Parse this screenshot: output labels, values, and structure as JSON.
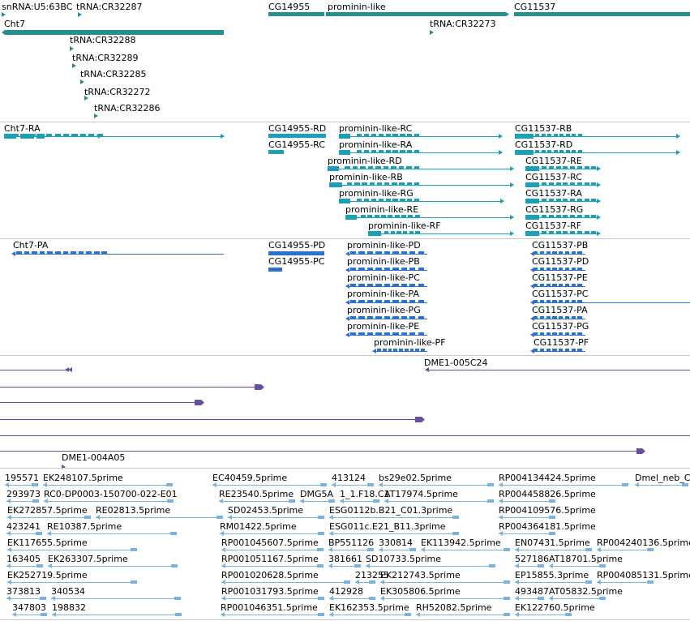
{
  "colors": {
    "gene": "#21908e",
    "transcript": "#1aa0b8",
    "protein": "#2f6fce",
    "clone": "#6a4fa0",
    "est": "#7ab4dc",
    "separator": "#c8c8c8"
  },
  "tracks": {
    "genes": {
      "labels": [
        "snRNA:U5:63BC",
        "tRNA:CR32287",
        "CG14955",
        "prominin-like",
        "CG11537",
        "Cht7",
        "tRNA:CR32273",
        "tRNA:CR32288",
        "tRNA:CR32289",
        "tRNA:CR32285",
        "tRNA:CR32272",
        "tRNA:CR32286"
      ]
    },
    "transcripts": {
      "labels": [
        "Cht7-RA",
        "CG14955-RD",
        "prominin-like-RC",
        "CG11537-RB",
        "CG14955-RC",
        "prominin-like-RA",
        "CG11537-RD",
        "prominin-like-RD",
        "CG11537-RE",
        "prominin-like-RB",
        "CG11537-RC",
        "prominin-like-RG",
        "CG11537-RA",
        "prominin-like-RE",
        "CG11537-RG",
        "prominin-like-RF",
        "CG11537-RF"
      ]
    },
    "proteins": {
      "labels": [
        "Cht7-PA",
        "CG14955-PD",
        "prominin-like-PD",
        "CG11537-PB",
        "CG14955-PC",
        "prominin-like-PB",
        "CG11537-PD",
        "prominin-like-PC",
        "CG11537-PE",
        "prominin-like-PA",
        "CG11537-PC",
        "prominin-like-PG",
        "CG11537-PA",
        "prominin-like-PE",
        "CG11537-PG",
        "prominin-like-PF",
        "CG11537-PF"
      ]
    },
    "clones": {
      "labels": [
        "DME1-005C24",
        "DME1-004A05"
      ]
    },
    "ests": {
      "labels": [
        "195571",
        "EK248107.5prime",
        "EC40459.5prime",
        "413124",
        "bs29e02.5prime",
        "RP004134424.5prime",
        "Dmel_neb_C",
        "293973",
        "RC0-DP0003-150700-022-E01",
        "RE23540.5prime",
        "DMG5A",
        "1_1.F18.C1",
        "AT17974.5prime",
        "RP004458826.5prime",
        "EK272857.5prime",
        "RE02813.5prime",
        "SD02453.5prime",
        "ESG0112b.B21_C01.3prime",
        "RP004109576.5prime",
        "423241",
        "RE10387.5prime",
        "RM01422.5prime",
        "ESG011c.E21_B11.3prime",
        "RP004364181.5prime",
        "EK117655.5prime",
        "RP001045607.5prime",
        "BP551126",
        "330814",
        "EK113942.5prime",
        "EN07431.5prime",
        "RP004240136.5prime",
        "163405",
        "EK263307.5prime",
        "RP001051167.5prime",
        "381661",
        "SD10733.5prime",
        "527186",
        "AT18701.5prime",
        "EK252719.5prime",
        "RP001020628.5prime",
        "213255",
        "EK212743.5prime",
        "EP15855.3prime",
        "RP004085131.5prime",
        "373813",
        "340534",
        "RP001031793.5prime",
        "412928",
        "EK305806.5prime",
        "493487",
        "AT05832.5prime",
        "347803",
        "198832",
        "RP001046351.5prime",
        "EK162353.5prime",
        "RH52082.5prime",
        "EK122760.5prime"
      ]
    }
  }
}
